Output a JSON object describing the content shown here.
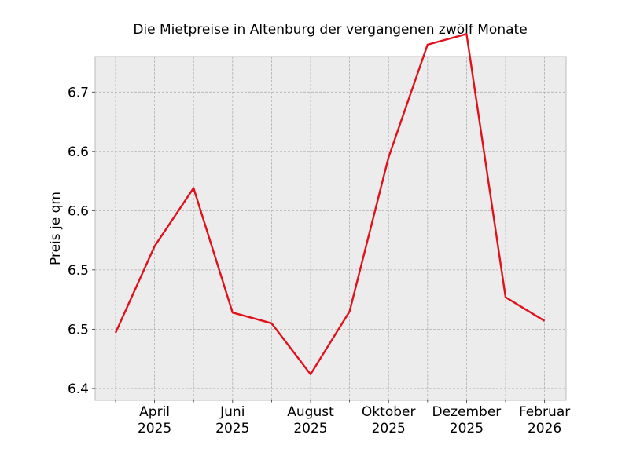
{
  "chart_data": {
    "type": "line",
    "title": "Die Mietpreise in Altenburg der vergangenen zwölf Monate",
    "xlabel": "",
    "ylabel": "Preis je qm",
    "x": [
      "2025-03",
      "2025-04",
      "2025-05",
      "2025-06",
      "2025-07",
      "2025-08",
      "2025-09",
      "2025-10",
      "2025-11",
      "2025-12",
      "2026-01",
      "2026-02"
    ],
    "series": [
      {
        "name": "",
        "color": "#e0111b",
        "values": [
          6.457,
          6.53,
          6.579,
          6.474,
          6.465,
          6.422,
          6.475,
          6.605,
          6.7,
          6.709,
          6.487,
          6.467
        ]
      }
    ],
    "ylim": [
      6.4,
      6.69
    ],
    "y_ticks": [
      6.41,
      6.46,
      6.51,
      6.56,
      6.61,
      6.66
    ],
    "y_tick_labels": [
      "6.4",
      "6.5",
      "6.5",
      "6.6",
      "6.6",
      "6.7"
    ],
    "x_ticks": [
      {
        "month": "2025-04",
        "line1": "April",
        "line2": "2025"
      },
      {
        "month": "2025-06",
        "line1": "Juni",
        "line2": "2025"
      },
      {
        "month": "2025-08",
        "line1": "August",
        "line2": "2025"
      },
      {
        "month": "2025-10",
        "line1": "Oktober",
        "line2": "2025"
      },
      {
        "month": "2025-12",
        "line1": "Dezember",
        "line2": "2025"
      },
      {
        "month": "2026-02",
        "line1": "Februar",
        "line2": "2026"
      }
    ],
    "x_minor_ticks": [
      "2025-03",
      "2025-05",
      "2025-07",
      "2025-09",
      "2025-11",
      "2026-01"
    ],
    "grid": true,
    "background": "#ececec"
  }
}
